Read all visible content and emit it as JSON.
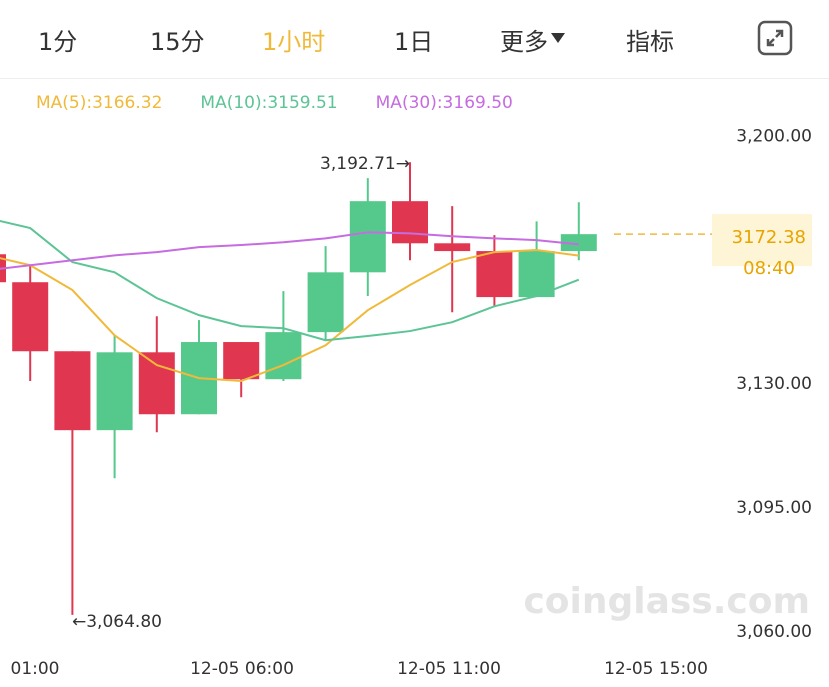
{
  "tabs": [
    "1分",
    "15分",
    "1小时",
    "1日",
    "更多",
    "指标"
  ],
  "active_tab": 2,
  "chart_data": {
    "type": "candlestick",
    "up_color": "#55c98b",
    "down_color": "#e0364f",
    "open": [
      3166.7,
      3158.8,
      3139.3,
      3117.0,
      3139.0,
      3121.5,
      3141.9,
      3131.4,
      3144.7,
      3161.6,
      3181.7,
      3169.8,
      3167.6,
      3154.6,
      3167.6
    ],
    "high": [
      3169.3,
      3163.6,
      3139.3,
      3143.8,
      3149.2,
      3148.1,
      3141.9,
      3156.3,
      3169.0,
      3188.2,
      3192.71,
      3180.3,
      3172.1,
      3176.0,
      3181.4
    ],
    "low": [
      3156.6,
      3130.9,
      3064.8,
      3103.4,
      3116.4,
      3121.5,
      3126.3,
      3130.9,
      3142.4,
      3154.9,
      3165.0,
      3150.3,
      3151.8,
      3154.6,
      3165.0
    ],
    "close": [
      3158.8,
      3139.3,
      3117.0,
      3139.0,
      3121.5,
      3141.9,
      3131.4,
      3144.7,
      3161.6,
      3181.7,
      3169.8,
      3167.6,
      3154.6,
      3167.6,
      3172.38
    ],
    "series": [
      {
        "name": "MA(5):3166.32",
        "color": "#f0b93a",
        "values": [
          3166.4,
          3163.6,
          3156.6,
          3143.8,
          3135.4,
          3131.7,
          3130.9,
          3135.4,
          3141.0,
          3150.9,
          3158.0,
          3164.5,
          3167.3,
          3167.9,
          3166.32
        ]
      },
      {
        "name": "MA(10):3159.51",
        "color": "#5cc495",
        "values": [
          3176.9,
          3174.1,
          3164.5,
          3161.6,
          3154.3,
          3149.5,
          3146.4,
          3145.8,
          3142.4,
          3143.6,
          3145.0,
          3147.5,
          3152.0,
          3154.9,
          3159.51
        ]
      },
      {
        "name": "MA(30):3169.50",
        "color": "#c66be0",
        "values": [
          3162.2,
          3163.6,
          3165.0,
          3166.4,
          3167.3,
          3168.7,
          3169.3,
          3170.1,
          3171.2,
          3172.9,
          3172.6,
          3171.8,
          3171.2,
          3170.7,
          3169.5
        ]
      }
    ],
    "ylim": [
      3058,
      3210
    ],
    "yticks": [
      {
        "value": 3200,
        "label": "3,200.00"
      },
      {
        "value": 3130,
        "label": "3,130.00"
      },
      {
        "value": 3095,
        "label": "3,095.00"
      },
      {
        "value": 3060,
        "label": "3,060.00"
      }
    ],
    "xlabels": [
      "01:00",
      "12-05 06:00",
      "12-05 11:00",
      "12-05 15:00"
    ],
    "annotations": [
      "3,192.71→",
      "←3,064.80"
    ],
    "countdown": "08:40",
    "watermark": "coinglass.com"
  }
}
